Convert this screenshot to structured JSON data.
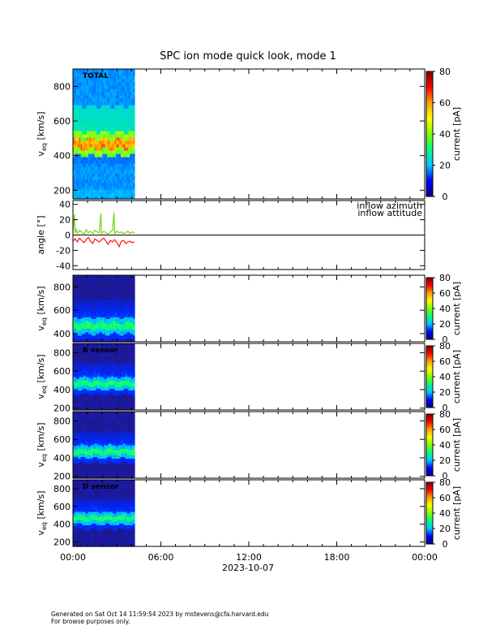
{
  "title": "SPC ion mode quick look, mode 1",
  "footer": {
    "line1": "Generated on Sat Oct 14 11:59:54 2023 by mstevens@cfa.harvard.edu",
    "line2": "For browse purposes only."
  },
  "colors": {
    "inflow_azimuth": "#ff2020",
    "inflow_altitude": "#7ed321",
    "colorbar": [
      "#000080",
      "#0000ff",
      "#00c8ff",
      "#00ff80",
      "#80ff00",
      "#ffff00",
      "#ffa000",
      "#ff0000",
      "#800000"
    ]
  },
  "chart_data": [
    {
      "type": "heatmap",
      "panel_label": "TOTAL",
      "ylabel_main": "v",
      "ylabel_sub": "eq",
      "ylabel_unit": "[km/s]",
      "yticks": [
        200,
        400,
        600,
        800
      ],
      "ylim": [
        150,
        900
      ],
      "data_xrange_hours": [
        0,
        4.2
      ],
      "colorbar": {
        "label": "current [pA]",
        "ticks": [
          0,
          20,
          40,
          60,
          80
        ],
        "range": [
          0,
          80
        ]
      },
      "peak_band_kms": [
        440,
        500
      ]
    },
    {
      "type": "line",
      "ylabel": "angle [°]",
      "yticks": [
        -40,
        -20,
        0,
        20,
        40
      ],
      "ylim": [
        -45,
        45
      ],
      "series": [
        {
          "name": "inflow azimuth",
          "x": [
            0.0,
            0.15,
            0.3,
            0.45,
            0.6,
            0.75,
            0.9,
            1.05,
            1.2,
            1.35,
            1.5,
            1.65,
            1.8,
            1.95,
            2.1,
            2.25,
            2.4,
            2.55,
            2.7,
            2.85,
            3.0,
            3.15,
            3.3,
            3.45,
            3.6,
            3.75,
            3.9,
            4.05,
            4.2
          ],
          "y": [
            -8,
            -5,
            -9,
            -4,
            -7,
            -10,
            -6,
            -3,
            -8,
            -11,
            -5,
            -7,
            -9,
            -6,
            -4,
            -8,
            -12,
            -7,
            -9,
            -6,
            -10,
            -15,
            -8,
            -7,
            -11,
            -9,
            -8,
            -10,
            -9
          ]
        },
        {
          "name": "inflow attitude",
          "x": [
            0.0,
            0.1,
            0.15,
            0.2,
            0.3,
            0.45,
            0.6,
            0.75,
            0.9,
            1.05,
            1.2,
            1.35,
            1.5,
            1.65,
            1.8,
            1.9,
            1.95,
            2.1,
            2.25,
            2.4,
            2.55,
            2.7,
            2.8,
            2.85,
            3.0,
            3.15,
            3.3,
            3.45,
            3.6,
            3.75,
            3.9,
            4.05,
            4.2
          ],
          "y": [
            5,
            27,
            3,
            8,
            2,
            6,
            4,
            1,
            7,
            3,
            5,
            2,
            6,
            4,
            3,
            28,
            2,
            5,
            3,
            1,
            4,
            6,
            29,
            2,
            5,
            3,
            4,
            2,
            3,
            5,
            2,
            4,
            3
          ]
        }
      ]
    },
    {
      "type": "heatmap",
      "panel_label": "",
      "ylabel_main": "v",
      "ylabel_sub": "eq",
      "ylabel_unit": "[km/s]",
      "yticks": [
        400,
        600,
        800
      ],
      "ylim": [
        330,
        900
      ],
      "data_xrange_hours": [
        0,
        4.2
      ],
      "colorbar": {
        "label": "current [pA]",
        "ticks": [
          0,
          20,
          40,
          60,
          80
        ],
        "range": [
          0,
          80
        ]
      },
      "peak_band_kms": [
        440,
        500
      ]
    },
    {
      "type": "heatmap",
      "panel_label": "B sensor",
      "ylabel_main": "v",
      "ylabel_sub": "eq",
      "ylabel_unit": "[km/s]",
      "yticks": [
        200,
        400,
        600,
        800
      ],
      "ylim": [
        180,
        900
      ],
      "data_xrange_hours": [
        0,
        4.2
      ],
      "colorbar": {
        "label": "current [pA]",
        "ticks": [
          0,
          20,
          40,
          60,
          80
        ],
        "range": [
          0,
          80
        ]
      },
      "peak_band_kms": [
        440,
        500
      ]
    },
    {
      "type": "heatmap",
      "panel_label": "",
      "ylabel_main": "v",
      "ylabel_sub": "eq",
      "ylabel_unit": "[km/s]",
      "yticks": [
        200,
        400,
        600,
        800
      ],
      "ylim": [
        180,
        900
      ],
      "data_xrange_hours": [
        0,
        4.2
      ],
      "colorbar": {
        "label": "current [pA]",
        "ticks": [
          0,
          20,
          40,
          60,
          80
        ],
        "range": [
          0,
          80
        ]
      },
      "peak_band_kms": [
        440,
        500
      ]
    },
    {
      "type": "heatmap",
      "panel_label": "D sensor",
      "ylabel_main": "v",
      "ylabel_sub": "eq",
      "ylabel_unit": "[km/s]",
      "yticks": [
        200,
        400,
        600,
        800
      ],
      "ylim": [
        150,
        900
      ],
      "data_xrange_hours": [
        0,
        4.2
      ],
      "colorbar": {
        "label": "current [pA]",
        "ticks": [
          0,
          20,
          40,
          60,
          80
        ],
        "range": [
          0,
          80
        ]
      },
      "peak_band_kms": [
        440,
        500
      ]
    }
  ],
  "xaxis": {
    "ticks": [
      "00:00",
      "06:00",
      "12:00",
      "18:00",
      "00:00"
    ],
    "tick_hours": [
      0,
      6,
      12,
      18,
      24
    ],
    "range_hours": [
      0,
      24
    ],
    "date_label": "2023-10-07"
  }
}
